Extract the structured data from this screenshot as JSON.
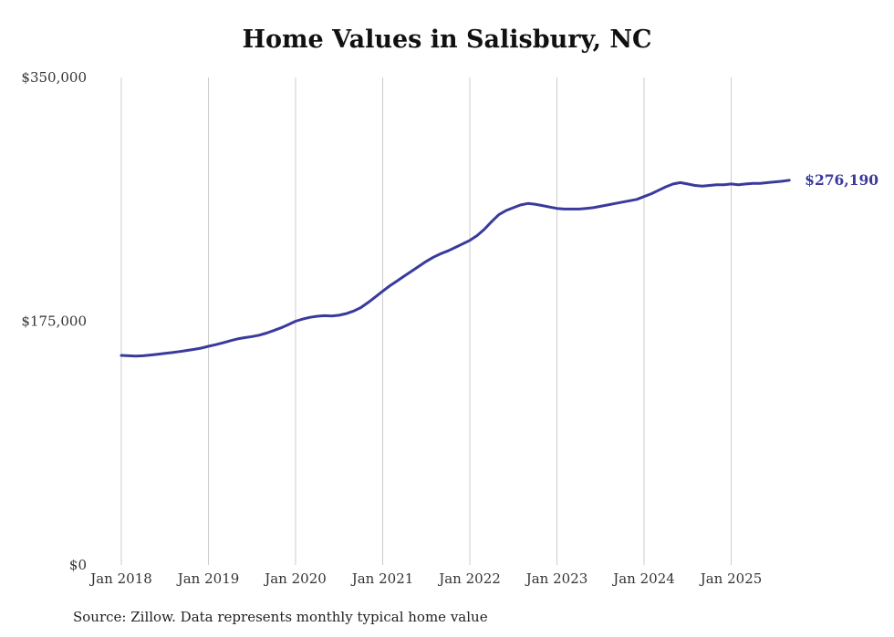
{
  "title": "Home Values in Salisbury, NC",
  "end_label": "$276,190",
  "source_note": "Source: Zillow. Data represents monthly typical home value",
  "colors": {
    "line": "#3a3a9d",
    "grid": "#cccccc",
    "axis_text": "#333333",
    "title_text": "#111111",
    "end_label_text": "#3a3a9d"
  },
  "chart_data": {
    "type": "line",
    "title": "Home Values in Salisbury, NC",
    "xlabel": "",
    "ylabel": "",
    "ylim": [
      0,
      350000
    ],
    "grid": "vertical-only",
    "legend": "none",
    "x_start": "Jan 2018",
    "x_end": "Sep 2025",
    "x_interval": "monthly",
    "x_tick_labels": [
      "Jan 2018",
      "Jan 2019",
      "Jan 2020",
      "Jan 2021",
      "Jan 2022",
      "Jan 2023",
      "Jan 2024",
      "Jan 2025"
    ],
    "y_ticks": [
      {
        "value": 0,
        "label": "$0"
      },
      {
        "value": 175000,
        "label": "$175,000"
      },
      {
        "value": 350000,
        "label": "$350,000"
      }
    ],
    "end_value": 276190,
    "end_value_label": "$276,190",
    "series": [
      {
        "name": "Typical home value",
        "values": [
          150500,
          150200,
          150000,
          150200,
          150700,
          151300,
          151900,
          152500,
          153200,
          154000,
          154800,
          155700,
          157000,
          158200,
          159500,
          161000,
          162300,
          163200,
          164000,
          165000,
          166500,
          168300,
          170300,
          172600,
          175000,
          176600,
          177800,
          178600,
          179000,
          178800,
          179300,
          180500,
          182300,
          184800,
          188500,
          192500,
          196500,
          200500,
          204000,
          207500,
          211000,
          214500,
          218000,
          221000,
          223500,
          225500,
          228000,
          230500,
          233000,
          236500,
          241000,
          246500,
          251500,
          254500,
          256500,
          258500,
          259500,
          259000,
          258000,
          257000,
          256000,
          255500,
          255500,
          255500,
          256000,
          256500,
          257500,
          258500,
          259500,
          260500,
          261500,
          262500,
          264500,
          266500,
          269000,
          271500,
          273500,
          274500,
          273500,
          272500,
          272000,
          272500,
          273000,
          273000,
          273500,
          273000,
          273500,
          274000,
          274000,
          274500,
          275000,
          275500,
          276190
        ]
      }
    ]
  }
}
